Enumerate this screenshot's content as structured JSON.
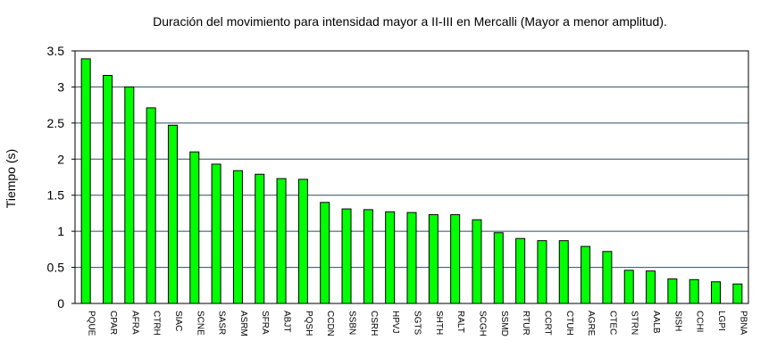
{
  "chart_data": {
    "type": "bar",
    "title": "Duración del movimiento para intensidad mayor a II-III en Mercalli (Mayor a menor amplitud).",
    "xlabel": "",
    "ylabel": "Tiempo (s)",
    "ylim": [
      0,
      3.5
    ],
    "yticks": [
      "0",
      "0.5",
      "1",
      "1.5",
      "2",
      "2.5",
      "3",
      "3.5"
    ],
    "grid": true,
    "legend": "none",
    "bar_color": "#00ff00",
    "categories": [
      "PQUE",
      "CPAR",
      "AFRA",
      "CTRH",
      "SIAC",
      "SCNE",
      "SASR",
      "ASRM",
      "SFRA",
      "ABJT",
      "PQSH",
      "CCDN",
      "SSBN",
      "CSRH",
      "HPVJ",
      "SGTS",
      "SHTH",
      "RALT",
      "SCGH",
      "SSMD",
      "RTUR",
      "CCRT",
      "CTUH",
      "AGRE",
      "CTEC",
      "STRN",
      "AALB",
      "SISH",
      "CCHI",
      "LGPI",
      "PBNA"
    ],
    "values": [
      3.39,
      3.16,
      3.0,
      2.71,
      2.47,
      2.1,
      1.93,
      1.84,
      1.79,
      1.73,
      1.72,
      1.4,
      1.31,
      1.3,
      1.27,
      1.26,
      1.23,
      1.23,
      1.16,
      0.98,
      0.9,
      0.87,
      0.87,
      0.79,
      0.72,
      0.46,
      0.45,
      0.34,
      0.33,
      0.3,
      0.27
    ]
  }
}
